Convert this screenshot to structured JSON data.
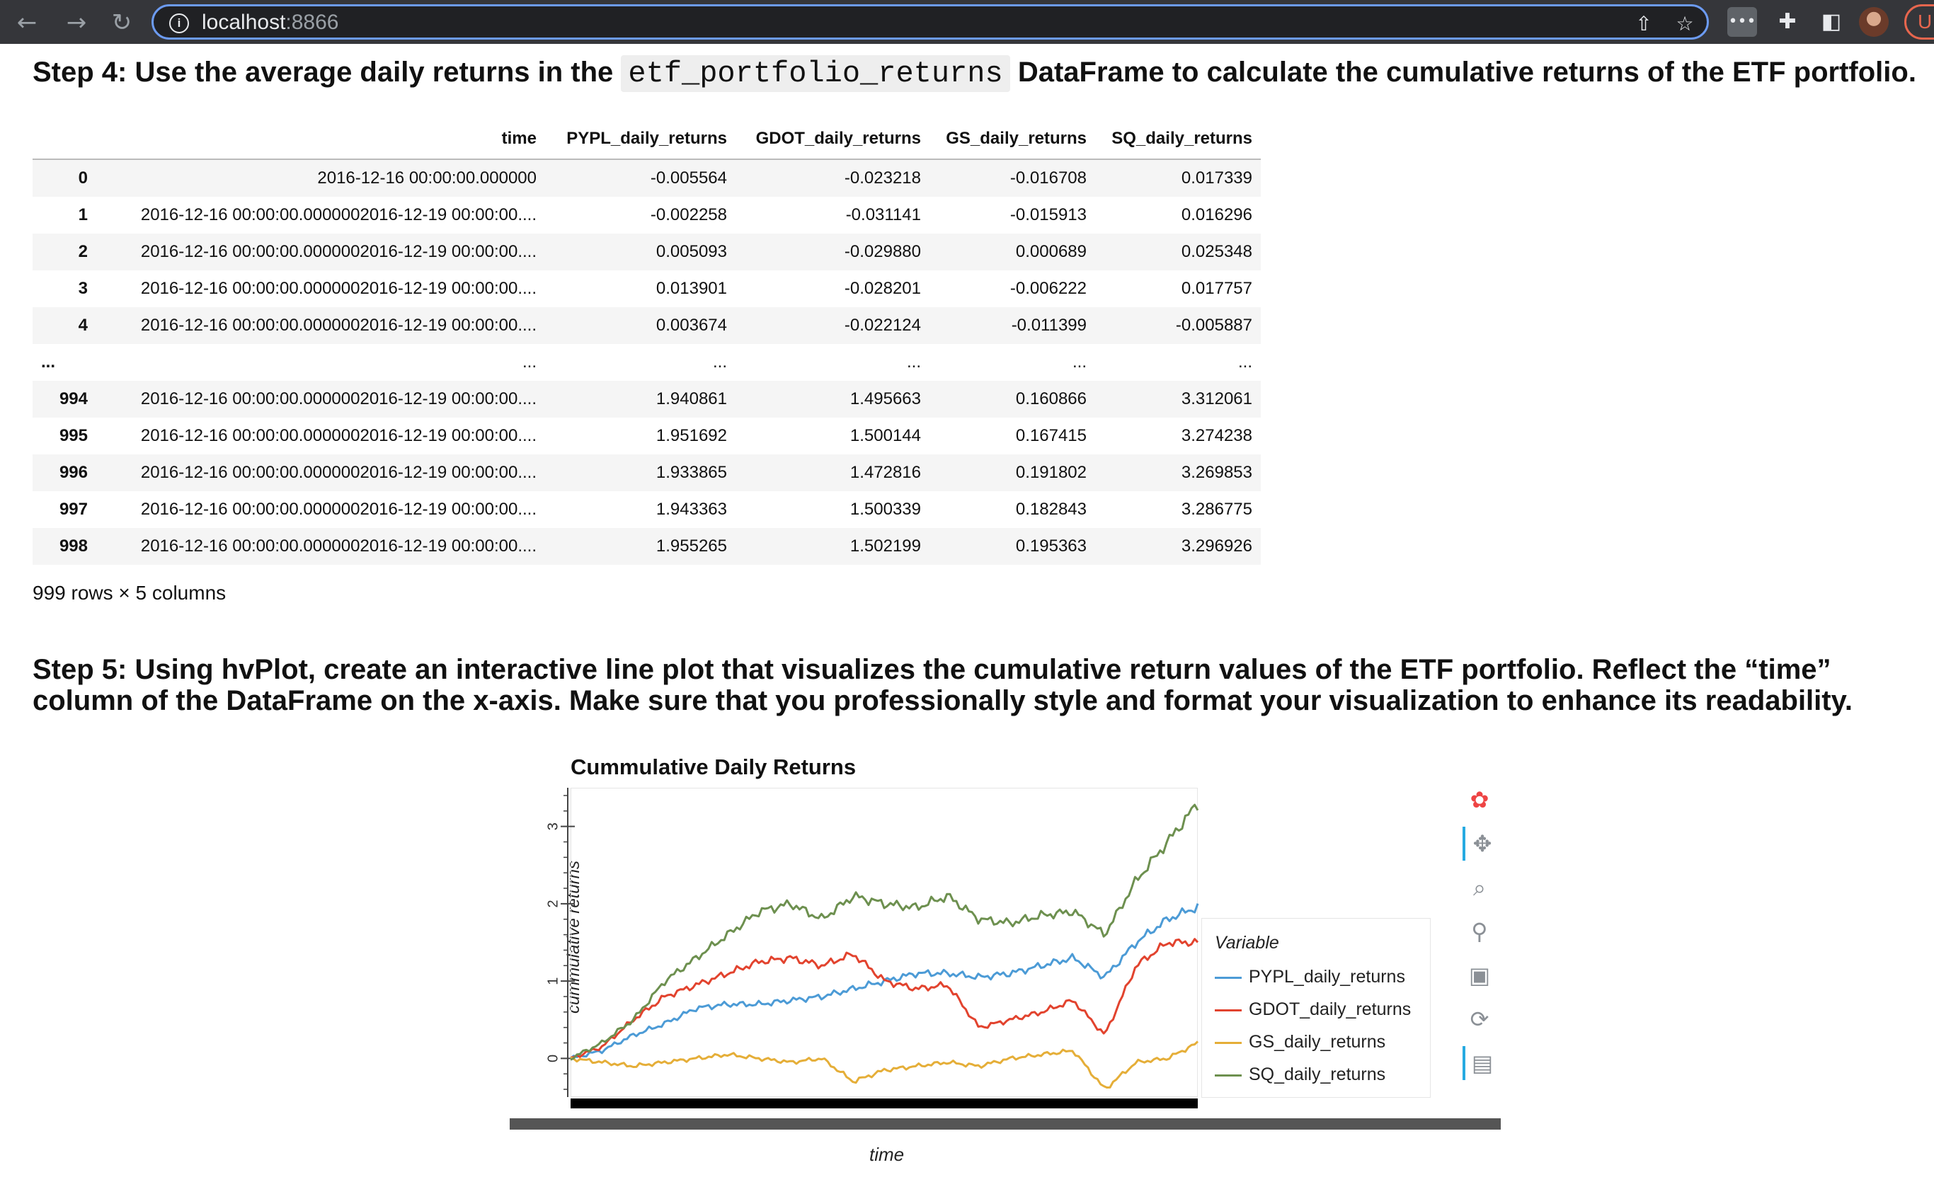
{
  "browser": {
    "url_host": "localhost",
    "url_port": ":8866",
    "profile_label": "U"
  },
  "step4": {
    "text_before": "Step 4: Use the average daily returns in the",
    "code": "etf_portfolio_returns",
    "text_after": "DataFrame to calculate the cumulative returns of the ETF portfolio."
  },
  "dataframe": {
    "columns": [
      "time",
      "PYPL_daily_returns",
      "GDOT_daily_returns",
      "GS_daily_returns",
      "SQ_daily_returns"
    ],
    "rows": [
      {
        "index": "0",
        "time": "2016-12-16 00:00:00.000000",
        "v": [
          "-0.005564",
          "-0.023218",
          "-0.016708",
          "0.017339"
        ]
      },
      {
        "index": "1",
        "time": "2016-12-16 00:00:00.0000002016-12-19 00:00:00....",
        "v": [
          "-0.002258",
          "-0.031141",
          "-0.015913",
          "0.016296"
        ]
      },
      {
        "index": "2",
        "time": "2016-12-16 00:00:00.0000002016-12-19 00:00:00....",
        "v": [
          "0.005093",
          "-0.029880",
          "0.000689",
          "0.025348"
        ]
      },
      {
        "index": "3",
        "time": "2016-12-16 00:00:00.0000002016-12-19 00:00:00....",
        "v": [
          "0.013901",
          "-0.028201",
          "-0.006222",
          "0.017757"
        ]
      },
      {
        "index": "4",
        "time": "2016-12-16 00:00:00.0000002016-12-19 00:00:00....",
        "v": [
          "0.003674",
          "-0.022124",
          "-0.011399",
          "-0.005887"
        ]
      },
      {
        "index": "...",
        "time": "...",
        "v": [
          "...",
          "...",
          "...",
          "..."
        ]
      },
      {
        "index": "994",
        "time": "2016-12-16 00:00:00.0000002016-12-19 00:00:00....",
        "v": [
          "1.940861",
          "1.495663",
          "0.160866",
          "3.312061"
        ]
      },
      {
        "index": "995",
        "time": "2016-12-16 00:00:00.0000002016-12-19 00:00:00....",
        "v": [
          "1.951692",
          "1.500144",
          "0.167415",
          "3.274238"
        ]
      },
      {
        "index": "996",
        "time": "2016-12-16 00:00:00.0000002016-12-19 00:00:00....",
        "v": [
          "1.933865",
          "1.472816",
          "0.191802",
          "3.269853"
        ]
      },
      {
        "index": "997",
        "time": "2016-12-16 00:00:00.0000002016-12-19 00:00:00....",
        "v": [
          "1.943363",
          "1.500339",
          "0.182843",
          "3.286775"
        ]
      },
      {
        "index": "998",
        "time": "2016-12-16 00:00:00.0000002016-12-19 00:00:00....",
        "v": [
          "1.955265",
          "1.502199",
          "0.195363",
          "3.296926"
        ]
      }
    ],
    "row_info": "999 rows × 5 columns"
  },
  "step5": {
    "text": "Step 5: Using hvPlot, create an interactive line plot that visualizes the cumulative return values of the ETF portfolio. Reflect the “time” column of the DataFrame on the x-axis. Make sure that you professionally style and format your visualization to enhance its readability."
  },
  "chart_data": {
    "type": "line",
    "title": "Cummulative Daily Returns",
    "xlabel": "time",
    "ylabel": "cummulative returns",
    "ylim": [
      -0.5,
      3.5
    ],
    "yticks": [
      0,
      1,
      2,
      3
    ],
    "legend_title": "Variable",
    "legend_position": "right",
    "x": [
      0,
      50,
      100,
      150,
      200,
      250,
      300,
      350,
      400,
      450,
      500,
      550,
      600,
      650,
      700,
      750,
      800,
      850,
      900,
      950,
      998
    ],
    "series": [
      {
        "name": "PYPL_daily_returns",
        "color": "#4c9bd6",
        "values": [
          0.0,
          0.1,
          0.3,
          0.45,
          0.65,
          0.7,
          0.7,
          0.75,
          0.8,
          0.9,
          1.0,
          1.1,
          1.1,
          1.05,
          1.1,
          1.2,
          1.3,
          1.05,
          1.5,
          1.8,
          1.96
        ]
      },
      {
        "name": "GDOT_daily_returns",
        "color": "#e2432e",
        "values": [
          0.0,
          0.15,
          0.5,
          0.8,
          0.95,
          1.1,
          1.25,
          1.3,
          1.2,
          1.35,
          1.0,
          0.9,
          0.95,
          0.4,
          0.5,
          0.6,
          0.75,
          0.3,
          1.2,
          1.5,
          1.5
        ]
      },
      {
        "name": "GS_daily_returns",
        "color": "#e5ae38",
        "values": [
          0.0,
          -0.05,
          -0.1,
          -0.05,
          0.0,
          0.05,
          0.0,
          -0.05,
          0.0,
          -0.3,
          -0.15,
          -0.1,
          -0.05,
          -0.1,
          0.0,
          0.05,
          0.1,
          -0.4,
          -0.05,
          0.0,
          0.2
        ]
      },
      {
        "name": "SQ_daily_returns",
        "color": "#6d904f",
        "values": [
          0.0,
          0.2,
          0.5,
          1.0,
          1.3,
          1.6,
          1.9,
          2.0,
          1.8,
          2.1,
          2.0,
          1.95,
          2.1,
          1.8,
          1.75,
          1.85,
          1.9,
          1.6,
          2.3,
          2.8,
          3.3
        ]
      }
    ]
  }
}
